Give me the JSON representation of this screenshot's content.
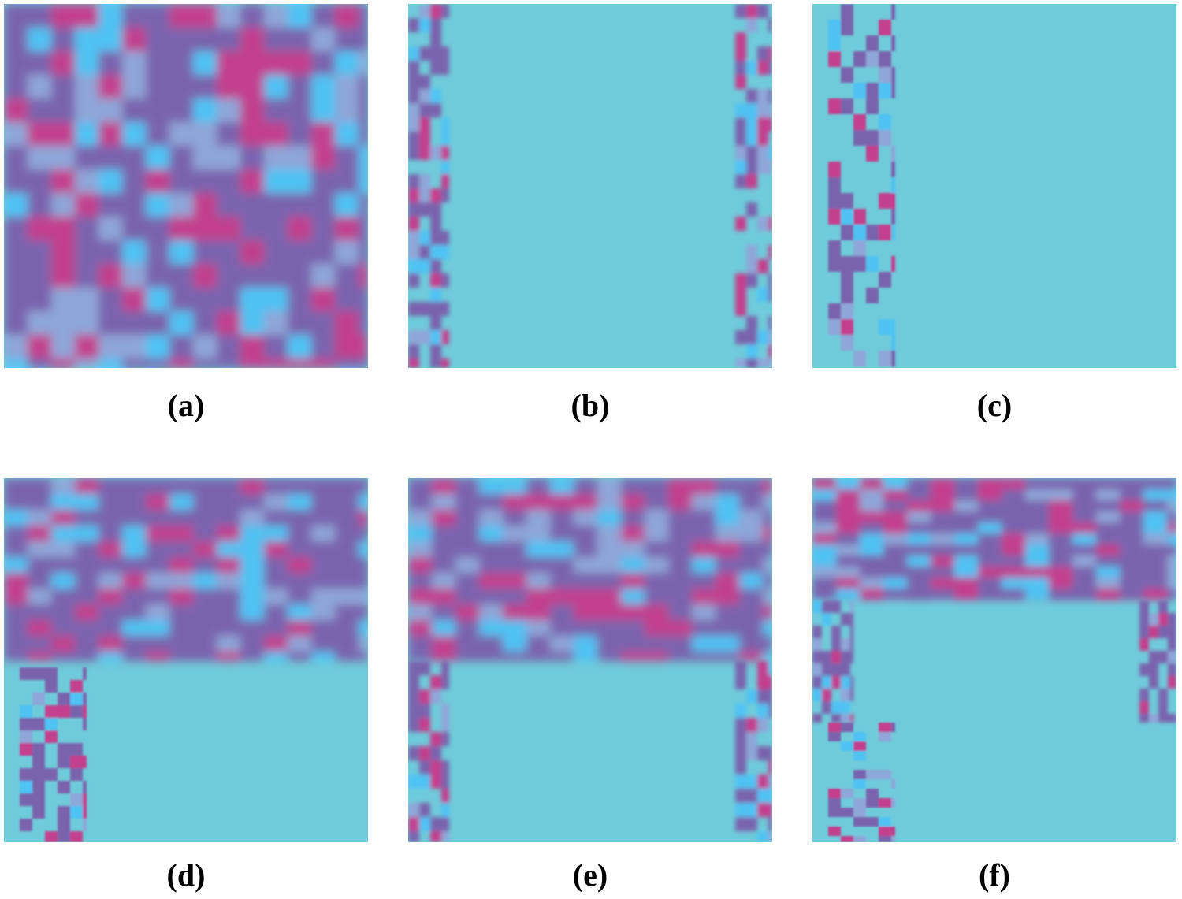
{
  "colors": {
    "background": "#6fcbda",
    "purple": "#7a64ad",
    "magenta": "#c23f8e",
    "cyan": "#4fc3f3",
    "lightblue": "#8fa6d8"
  },
  "panels": [
    {
      "id": "a",
      "caption": "(a)"
    },
    {
      "id": "b",
      "caption": "(b)"
    },
    {
      "id": "c",
      "caption": "(c)"
    },
    {
      "id": "d",
      "caption": "(d)"
    },
    {
      "id": "e",
      "caption": "(e)"
    },
    {
      "id": "f",
      "caption": "(f)"
    }
  ]
}
